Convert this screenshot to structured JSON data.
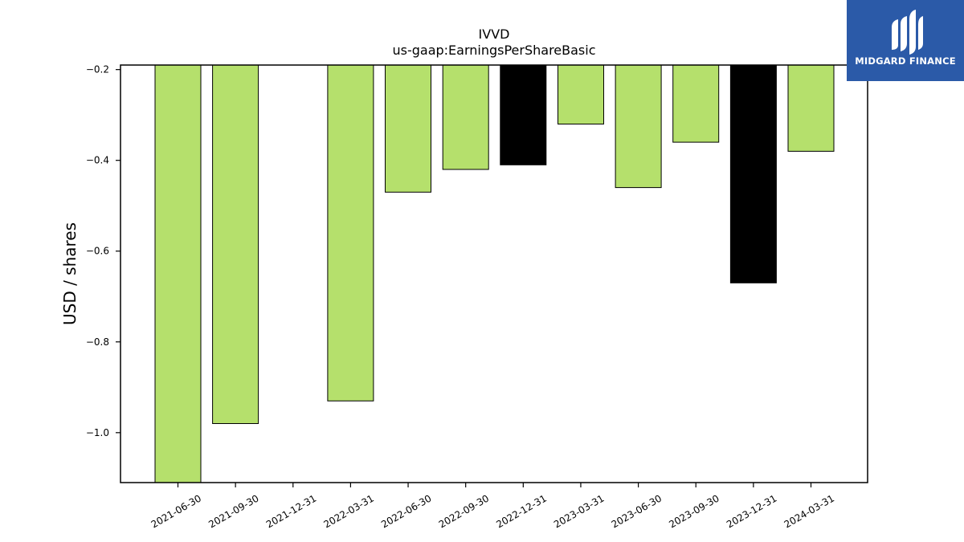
{
  "brand": {
    "name": "MIDGARD FINANCE",
    "bg_color": "#2b5aa8"
  },
  "chart_data": {
    "type": "bar",
    "title": "IVVD",
    "subtitle": "us-gaap:EarningsPerShareBasic",
    "ylabel": "USD / shares",
    "xlabel": "",
    "ylim": [
      -1.11,
      -0.19
    ],
    "yticks": [
      -0.2,
      -0.4,
      -0.6,
      -0.8,
      -1.0
    ],
    "ytick_labels": [
      "−0.2",
      "−0.4",
      "−0.6",
      "−0.8",
      "−1.0"
    ],
    "categories": [
      "2021-06-30",
      "2021-09-30",
      "2021-12-31",
      "2022-03-31",
      "2022-06-30",
      "2022-09-30",
      "2022-12-31",
      "2023-03-31",
      "2023-06-30",
      "2023-09-30",
      "2023-12-31",
      "2024-03-31"
    ],
    "values": [
      -1.11,
      -0.98,
      null,
      -0.93,
      -0.47,
      -0.42,
      -0.41,
      -0.32,
      -0.46,
      -0.36,
      -0.67,
      -0.38
    ],
    "bar_colors": [
      "#b5e06c",
      "#b5e06c",
      "#b5e06c",
      "#b5e06c",
      "#b5e06c",
      "#b5e06c",
      "#000000",
      "#b5e06c",
      "#b5e06c",
      "#b5e06c",
      "#000000",
      "#b5e06c"
    ],
    "grid": false,
    "legend": "none"
  }
}
